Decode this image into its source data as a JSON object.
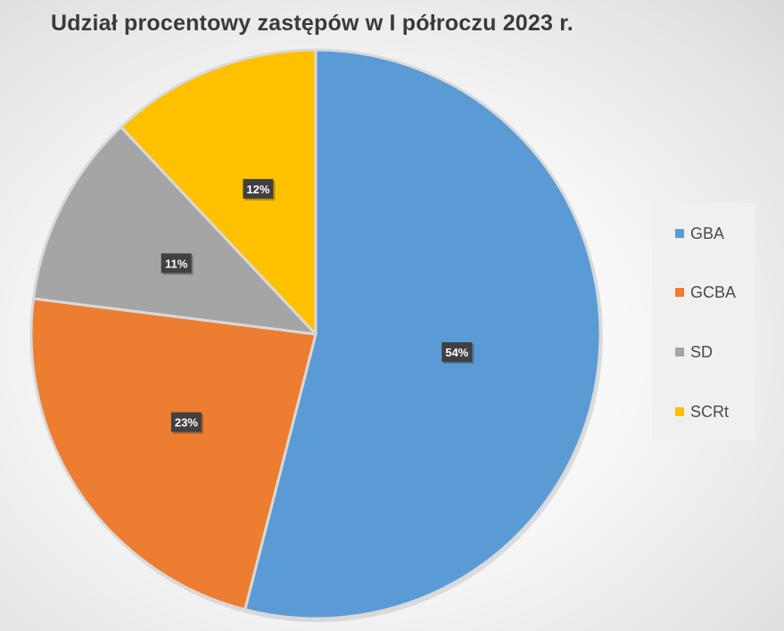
{
  "chart_data": {
    "type": "pie",
    "title": "Udział procentowy zastępów w I półroczu 2023 r.",
    "categories": [
      "GBA",
      "GCBA",
      "SD",
      "SCRt"
    ],
    "values": [
      54,
      23,
      11,
      12
    ],
    "data_labels": [
      "54%",
      "23%",
      "11%",
      "12%"
    ],
    "colors": [
      "#5b9bd5",
      "#ed7d31",
      "#a5a5a5",
      "#ffc000"
    ],
    "legend_position": "right",
    "start_angle": "top",
    "direction": "clockwise"
  }
}
